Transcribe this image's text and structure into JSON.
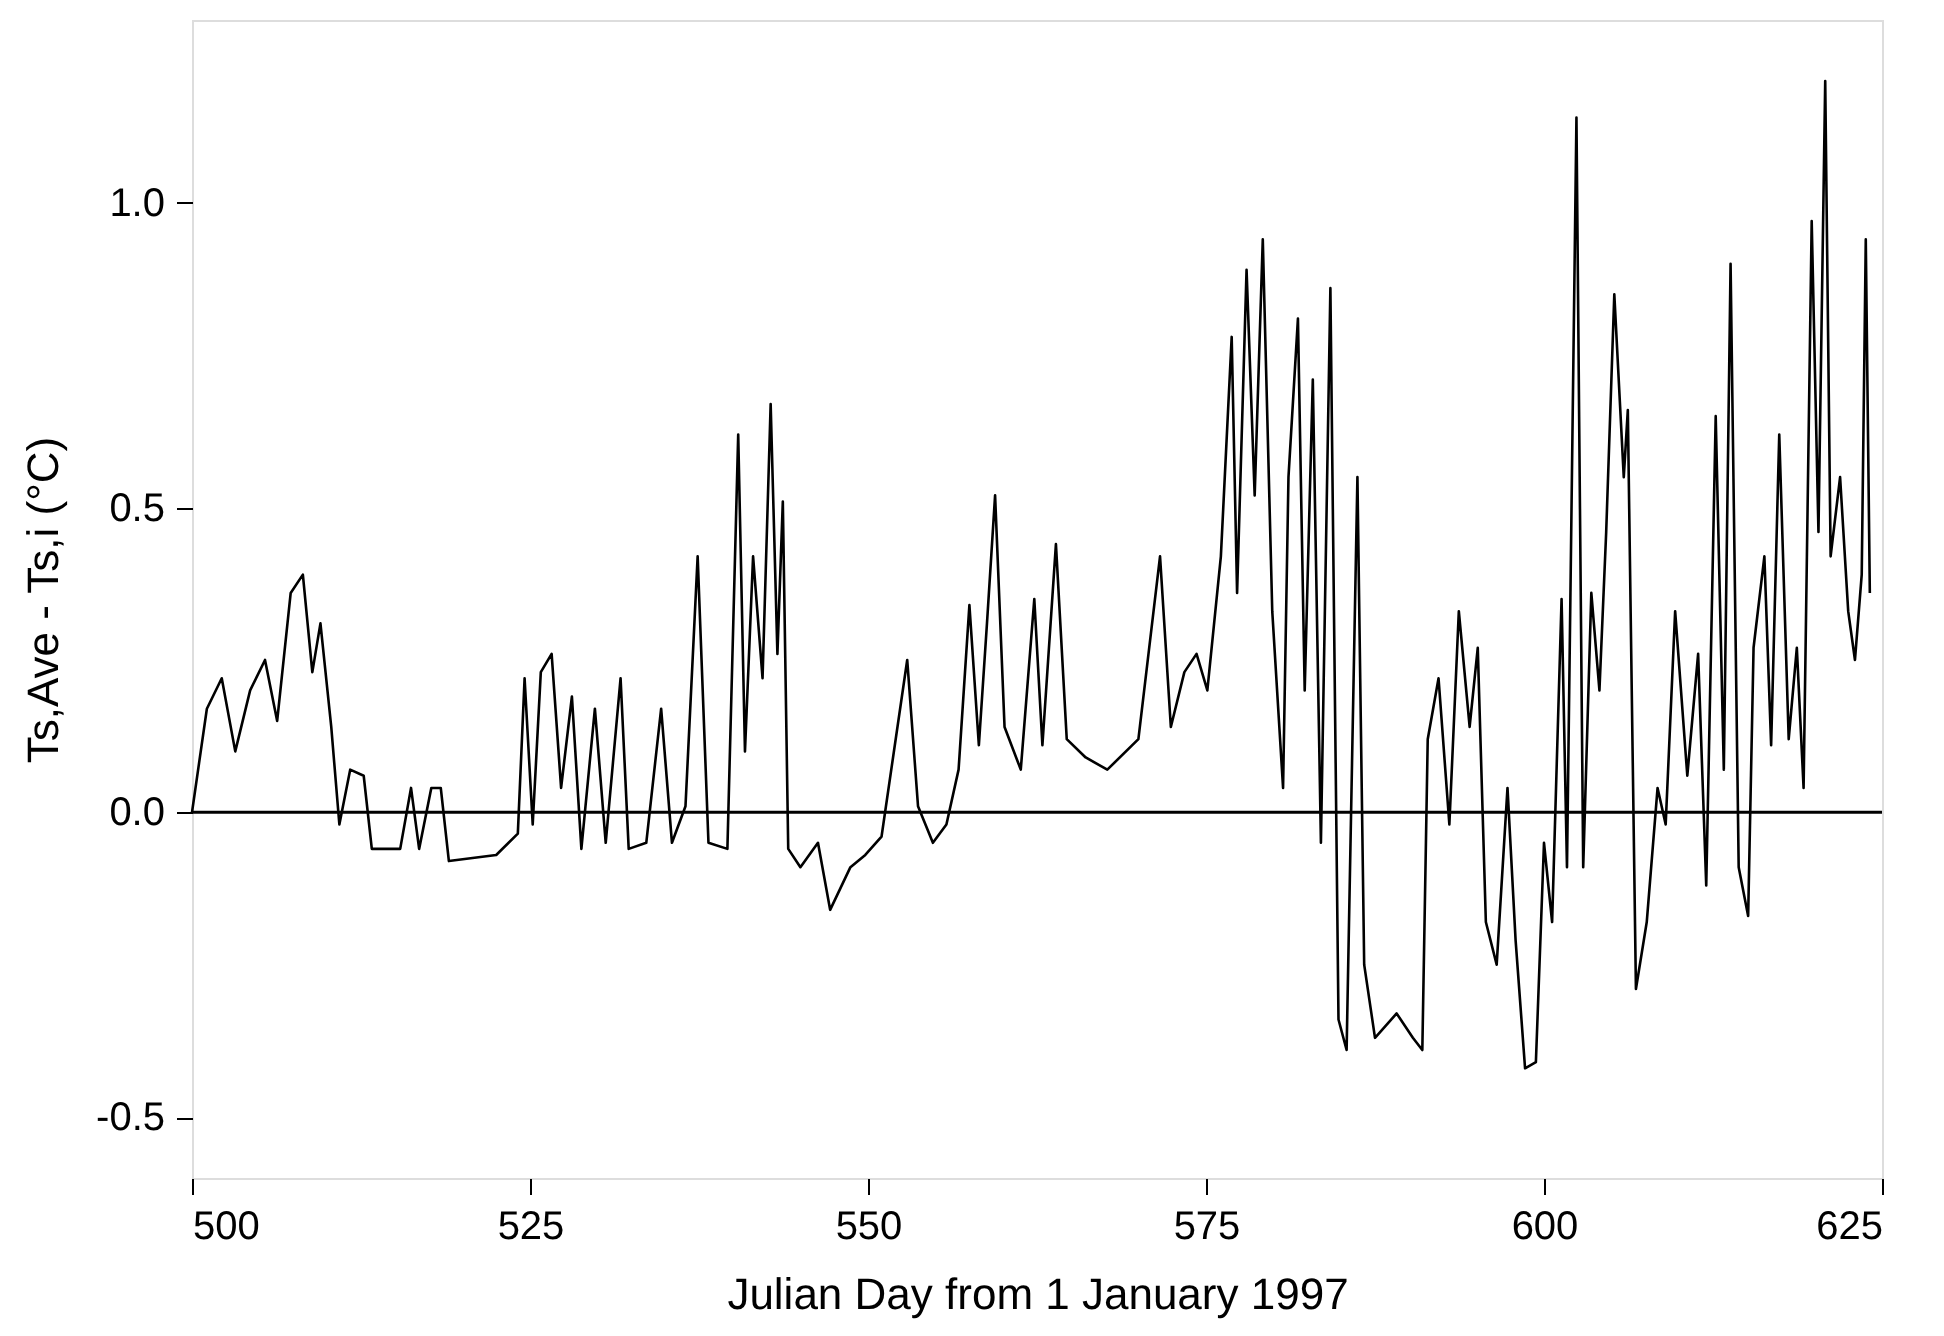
{
  "chart_data": {
    "type": "line",
    "xlabel": "Julian Day from 1 January 1997",
    "ylabel": "Ts,Ave - Ts,i (°C)",
    "xlim": [
      500,
      625
    ],
    "xticks": [
      500,
      525,
      550,
      575,
      600,
      625
    ],
    "ylim": [
      -0.6,
      1.3
    ],
    "yticks": [
      {
        "value": -0.5,
        "label": "-0.5"
      },
      {
        "value": 0,
        "label": "0.0"
      },
      {
        "value": 0.5,
        "label": "0.5"
      },
      {
        "value": 1,
        "label": "1.0"
      }
    ],
    "grid": false,
    "marker": "none",
    "line_style": "solid",
    "ref_lines": [
      {
        "axis": "y",
        "value": 0,
        "color": "#000000",
        "line_style": "solid"
      }
    ],
    "series": [
      {
        "color": "#000000",
        "x": [
          500,
          501.1,
          502.2,
          503.2,
          504.3,
          505.4,
          506.3,
          507.3,
          508.2,
          508.9,
          509.5,
          510.3,
          510.9,
          511.7,
          512.7,
          513.3,
          515.4,
          516.2,
          516.8,
          517.7,
          518.4,
          519,
          522.5,
          524.1,
          524.6,
          525.2,
          525.8,
          526.6,
          527.3,
          528.1,
          528.8,
          529.8,
          530.6,
          531.7,
          532.3,
          533.6,
          534.7,
          535.5,
          536.5,
          537.4,
          538.2,
          539.6,
          540.4,
          540.9,
          541.5,
          542.2,
          542.8,
          543.3,
          543.7,
          544.1,
          545.0,
          546.3,
          547.2,
          548.7,
          549.8,
          551,
          552.9,
          553.7,
          554.8,
          555.8,
          556.7,
          557.5,
          558.2,
          558.8,
          559.4,
          560.1,
          561.3,
          562.3,
          562.9,
          563.9,
          564.7,
          566.1,
          567.7,
          570,
          571.6,
          572.4,
          573.4,
          574.3,
          575.1,
          576.1,
          576.9,
          577.3,
          578,
          578.6,
          579.2,
          579.9,
          580.7,
          581.1,
          581.8,
          582.3,
          582.9,
          583.5,
          584.2,
          584.8,
          585.4,
          586.2,
          586.7,
          587.5,
          589.1,
          590.3,
          591,
          591.4,
          592.2,
          593,
          593.7,
          594.5,
          595.1,
          595.7,
          596.5,
          597.3,
          597.9,
          598.6,
          599.4,
          600,
          600.6,
          601.3,
          601.7,
          602.4,
          602.9,
          603.5,
          604.1,
          604.6,
          605.2,
          605.9,
          606.2,
          606.8,
          607.6,
          608.4,
          609,
          609.7,
          610.6,
          611.4,
          612,
          612.7,
          613.3,
          613.8,
          614.4,
          615.1,
          615.5,
          616.3,
          616.8,
          617.4,
          618.1,
          618.7,
          619.2,
          619.8,
          620.3,
          620.8,
          621.2,
          621.9,
          622.5,
          623,
          623.5,
          623.8,
          624.1
        ],
        "values": [
          0.0,
          0.17,
          0.22,
          0.1,
          0.2,
          0.25,
          0.15,
          0.36,
          0.39,
          0.23,
          0.31,
          0.14,
          -0.02,
          0.07,
          0.06,
          -0.06,
          -0.06,
          0.04,
          -0.06,
          0.04,
          0.04,
          -0.08,
          -0.07,
          -0.035,
          0.22,
          -0.02,
          0.23,
          0.26,
          0.04,
          0.19,
          -0.06,
          0.17,
          -0.05,
          0.22,
          -0.06,
          -0.05,
          0.17,
          -0.05,
          0.01,
          0.42,
          -0.05,
          -0.06,
          0.62,
          0.1,
          0.42,
          0.22,
          0.67,
          0.26,
          0.51,
          -0.06,
          -0.09,
          -0.05,
          -0.16,
          -0.09,
          -0.07,
          -0.04,
          0.25,
          0.01,
          -0.05,
          -0.02,
          0.07,
          0.34,
          0.11,
          0.31,
          0.52,
          0.14,
          0.07,
          0.35,
          0.11,
          0.44,
          0.12,
          0.09,
          0.07,
          0.12,
          0.42,
          0.14,
          0.23,
          0.26,
          0.2,
          0.42,
          0.78,
          0.36,
          0.89,
          0.52,
          0.94,
          0.33,
          0.04,
          0.55,
          0.81,
          0.2,
          0.71,
          -0.05,
          0.86,
          -0.34,
          -0.39,
          0.55,
          -0.25,
          -0.37,
          -0.33,
          -0.37,
          -0.39,
          0.12,
          0.22,
          -0.02,
          0.33,
          0.14,
          0.27,
          -0.18,
          -0.25,
          0.04,
          -0.21,
          -0.42,
          -0.41,
          -0.05,
          -0.18,
          0.35,
          -0.09,
          1.14,
          -0.09,
          0.36,
          0.2,
          0.46,
          0.85,
          0.55,
          0.66,
          -0.29,
          -0.18,
          0.04,
          -0.02,
          0.33,
          0.06,
          0.26,
          -0.12,
          0.65,
          0.07,
          0.9,
          -0.09,
          -0.17,
          0.27,
          0.42,
          0.11,
          0.62,
          0.12,
          0.27,
          0.04,
          0.97,
          0.46,
          1.2,
          0.42,
          0.55,
          0.33,
          0.25,
          0.39,
          0.94,
          0.36
        ]
      }
    ]
  }
}
